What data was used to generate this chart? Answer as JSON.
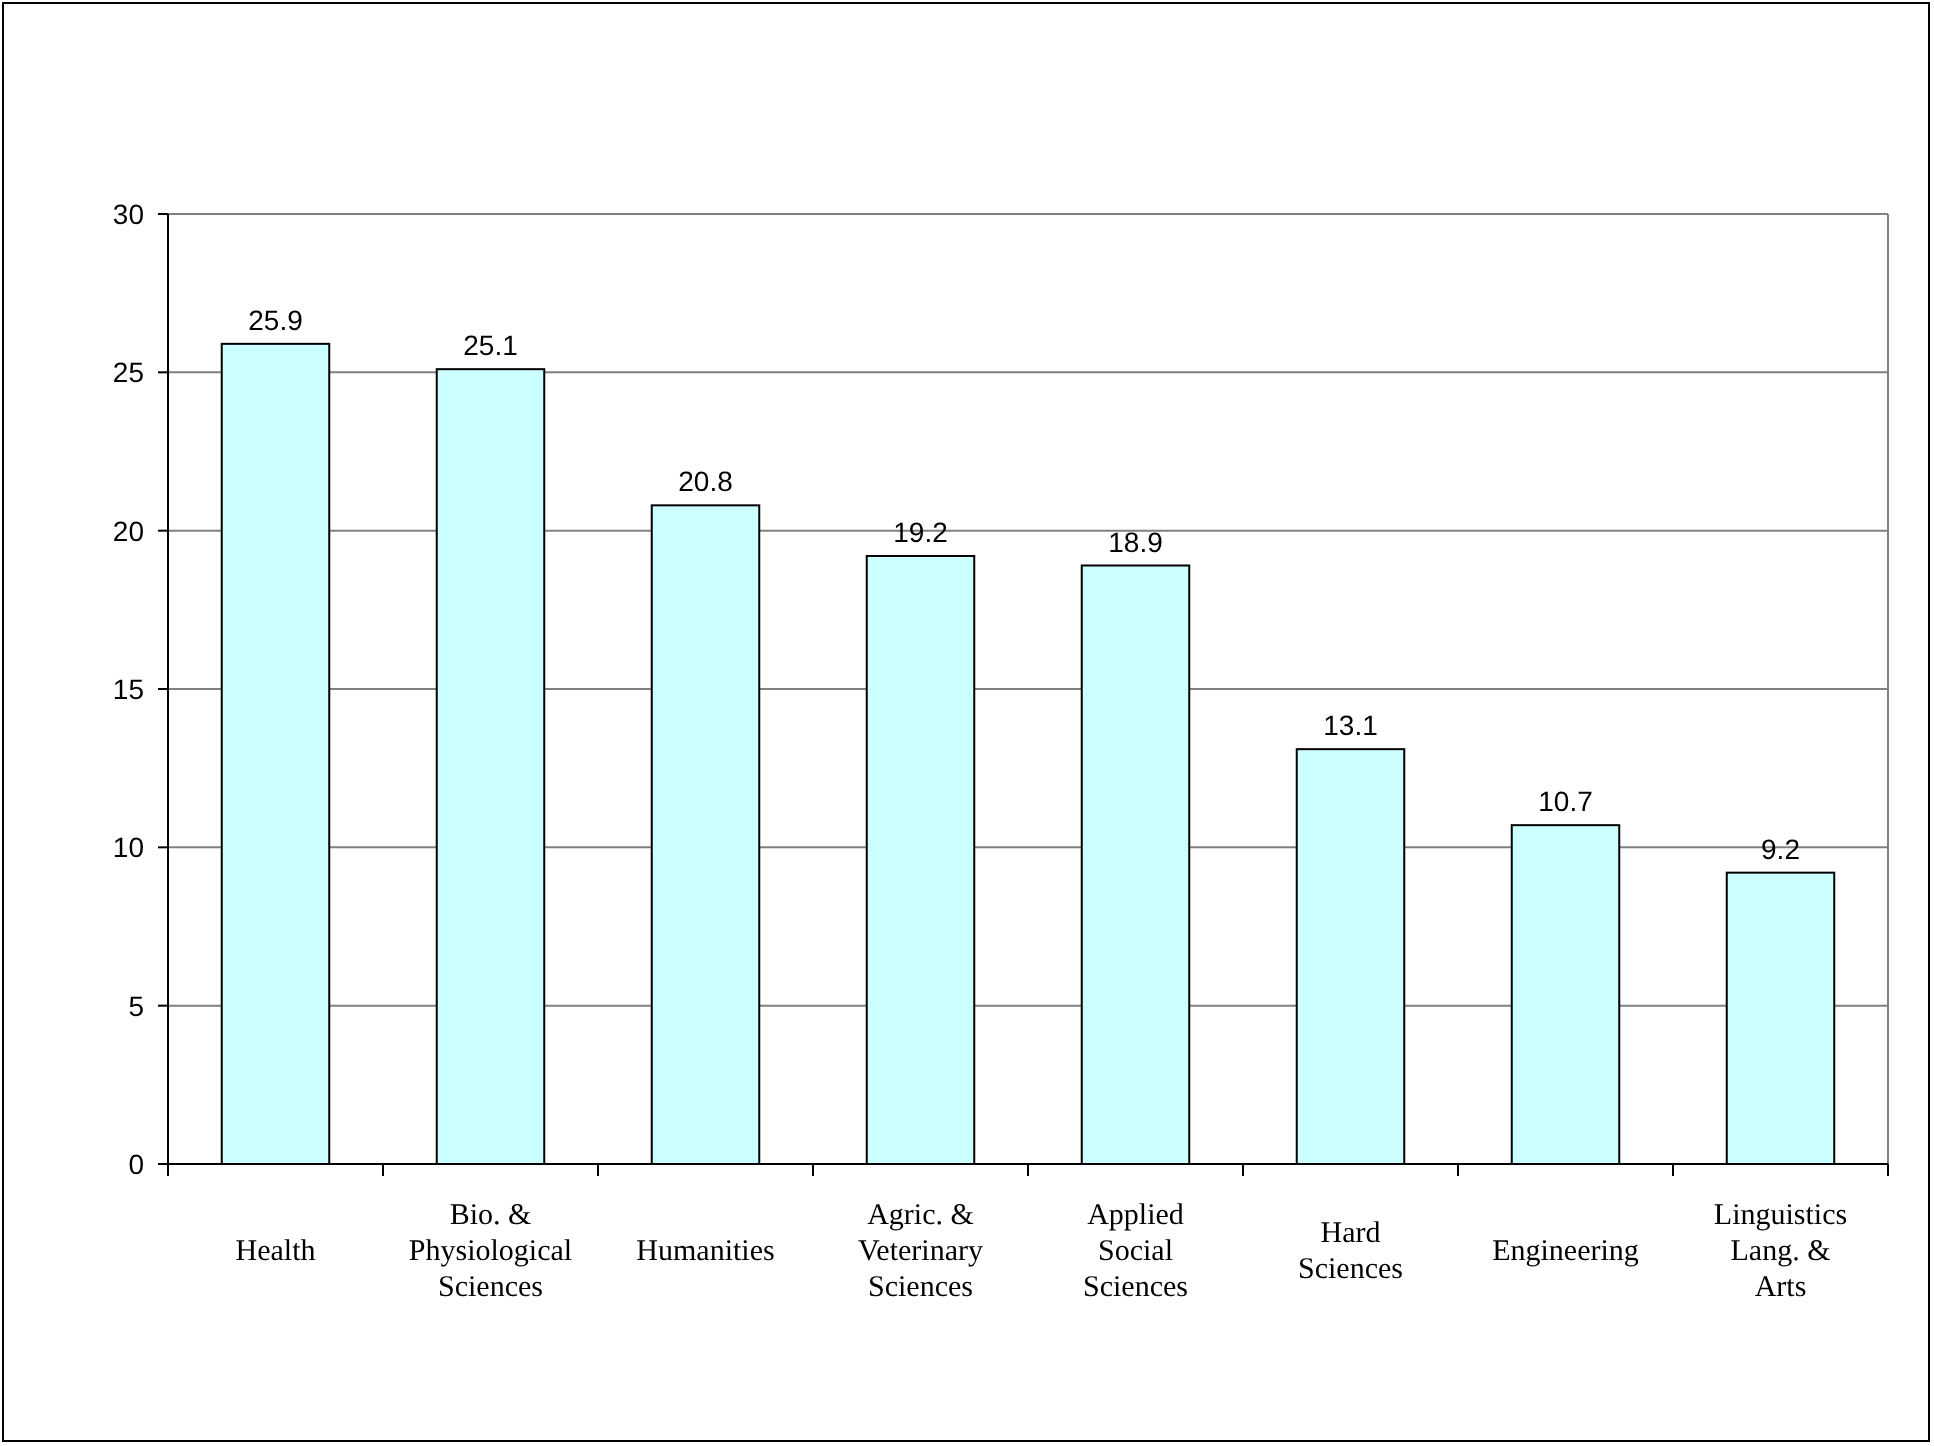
{
  "chart_data": {
    "type": "bar",
    "categories": [
      "Health",
      "Bio. &\nPhysiological\nSciences",
      "Humanities",
      "Agric. &\nVeterinary\nSciences",
      "Applied\nSocial\nSciences",
      "Hard\nSciences",
      "Engineering",
      "Linguistics\nLang. &\nArts"
    ],
    "values": [
      25.9,
      25.1,
      20.8,
      19.2,
      18.9,
      13.1,
      10.7,
      9.2
    ],
    "color": "#ccffff",
    "ylim": [
      0,
      30
    ],
    "yticks": [
      0,
      5,
      10,
      15,
      20,
      25,
      30
    ],
    "grid": "y",
    "data_labels": true
  }
}
